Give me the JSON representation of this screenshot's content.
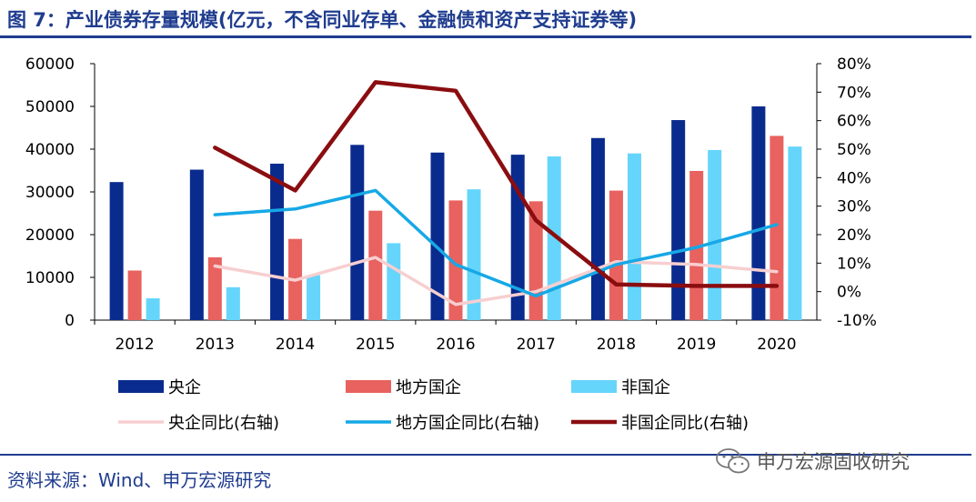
{
  "title": "图 7：产业债券存量规模(亿元，不含同业存单、金融债和资产支持证券等)",
  "source": "资料来源：Wind、申万宏源研究",
  "watermark": {
    "icon": "wechat-icon",
    "text": "申万宏源固收研究"
  },
  "colors": {
    "central": "#0a2b8e",
    "local": "#e8625f",
    "nonstate": "#66d5fb",
    "central_yoy": "#f7cfd0",
    "local_yoy": "#16a8e6",
    "nonstate_yoy": "#8a0d10",
    "title": "#1f3c8f"
  },
  "chart_data": {
    "type": "bar",
    "categories": [
      "2012",
      "2013",
      "2014",
      "2015",
      "2016",
      "2017",
      "2018",
      "2019",
      "2020"
    ],
    "y_left": {
      "min": 0,
      "max": 60000,
      "ticks": [
        "0",
        "10000",
        "20000",
        "30000",
        "40000",
        "50000",
        "60000"
      ]
    },
    "y_right": {
      "min": -0.1,
      "max": 0.8,
      "ticks": [
        "-10%",
        "0%",
        "10%",
        "20%",
        "30%",
        "40%",
        "50%",
        "60%",
        "70%",
        "80%"
      ]
    },
    "series": [
      {
        "name": "央企",
        "type": "bar",
        "axis": "left",
        "values": [
          32300,
          35200,
          36600,
          41000,
          39200,
          38700,
          42600,
          46800,
          50000
        ]
      },
      {
        "name": "地方国企",
        "type": "bar",
        "axis": "left",
        "values": [
          11600,
          14700,
          19000,
          25600,
          28000,
          27800,
          30300,
          34900,
          43100
        ]
      },
      {
        "name": "非国企",
        "type": "bar",
        "axis": "left",
        "values": [
          5100,
          7700,
          10500,
          18000,
          30600,
          38300,
          39000,
          39800,
          40600
        ]
      },
      {
        "name": "央企同比(右轴)",
        "type": "line",
        "axis": "right",
        "values": [
          null,
          0.09,
          0.04,
          0.12,
          -0.045,
          0.0,
          0.105,
          0.095,
          0.07
        ]
      },
      {
        "name": "地方国企同比(右轴)",
        "type": "line",
        "axis": "right",
        "values": [
          null,
          0.27,
          0.29,
          0.355,
          0.095,
          -0.015,
          0.095,
          0.155,
          0.235
        ]
      },
      {
        "name": "非国企同比(右轴)",
        "type": "line",
        "axis": "right",
        "values": [
          null,
          0.505,
          0.355,
          0.735,
          0.705,
          0.25,
          0.025,
          0.02,
          0.02
        ]
      }
    ],
    "legend": {
      "placement": "bottom",
      "items": [
        "央企",
        "地方国企",
        "非国企",
        "央企同比(右轴)",
        "地方国企同比(右轴)",
        "非国企同比(右轴)"
      ]
    },
    "grid": false
  }
}
